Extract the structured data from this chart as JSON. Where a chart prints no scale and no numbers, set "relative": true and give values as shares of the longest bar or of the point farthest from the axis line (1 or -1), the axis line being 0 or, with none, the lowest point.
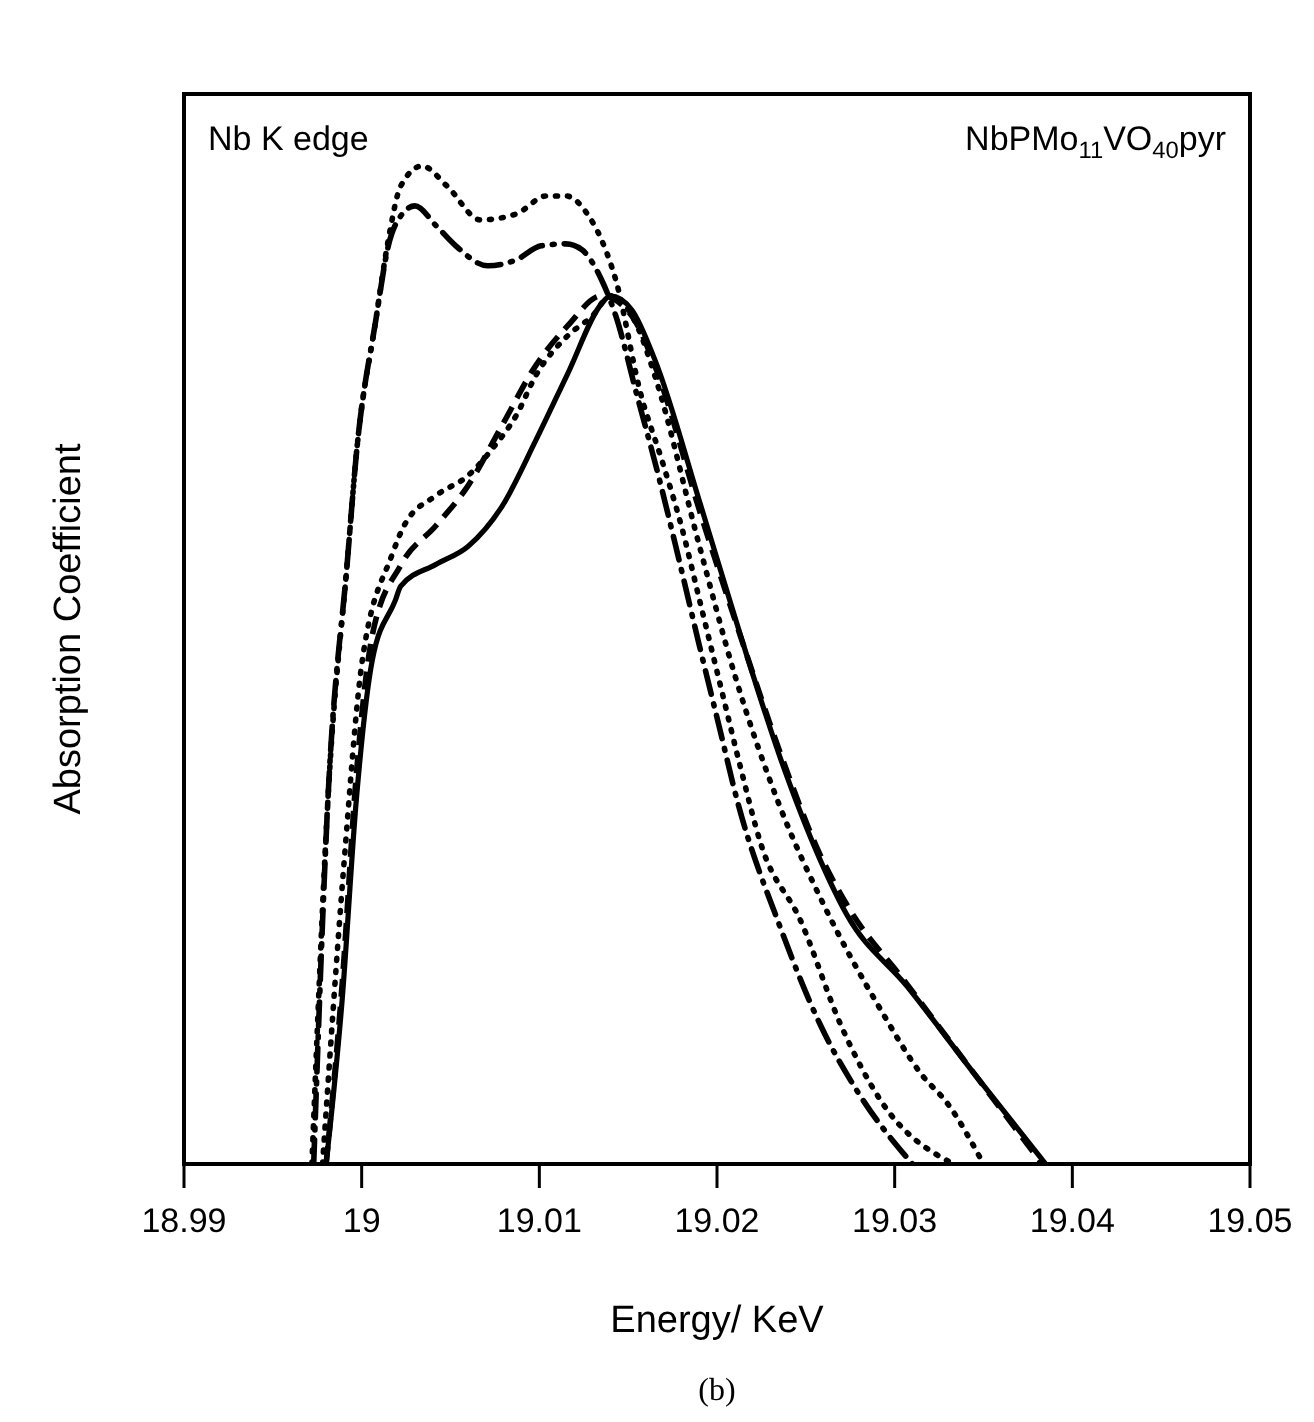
{
  "chart_data": {
    "type": "line",
    "relative": true,
    "xlabel": "Energy/ KeV",
    "ylabel": "Absorption Coefficient",
    "annotations": [
      "Nb K edge",
      "NbPMo$_{11}$VO$_{40}$pyr",
      "(b)"
    ],
    "xlim": [
      18.99,
      19.05
    ],
    "xticks": [
      18.99,
      19,
      19.01,
      19.02,
      19.03,
      19.04,
      19.05
    ],
    "grid": false,
    "marker": "none",
    "series": [
      {
        "color": "#000000",
        "line_style": "solid",
        "x": [
          18.998,
          18.9989,
          18.9997,
          19.0006,
          19.0019,
          19.0022,
          19.0042,
          19.006,
          19.0079,
          19.0098,
          19.0116,
          19.0135,
          19.014,
          19.0152,
          19.0165,
          19.0191,
          19.0213,
          19.0236,
          19.0258,
          19.0273,
          19.0307,
          19.0345,
          19.0385
        ],
        "values": [
          0,
          0.164,
          0.365,
          0.505,
          0.565,
          0.579,
          0.601,
          0.619,
          0.659,
          0.725,
          0.792,
          0.862,
          0.87,
          0.856,
          0.806,
          0.659,
          0.531,
          0.405,
          0.305,
          0.25,
          0.178,
          0.09,
          0
        ]
      },
      {
        "color": "#000000",
        "line_style": "dashed",
        "x": [
          18.998,
          18.9989,
          18.9997,
          19.0006,
          19.0022,
          19.0042,
          19.006,
          19.0079,
          19.0098,
          19.0116,
          19.0135,
          19.0152,
          19.0165,
          19.0191,
          19.0213,
          19.0236,
          19.0258,
          19.0273,
          19.0307,
          19.0345,
          19.0383
        ],
        "values": [
          0,
          0.18,
          0.39,
          0.53,
          0.6,
          0.64,
          0.68,
          0.74,
          0.8,
          0.84,
          0.87,
          0.85,
          0.8,
          0.65,
          0.53,
          0.41,
          0.31,
          0.26,
          0.18,
          0.09,
          0
        ]
      },
      {
        "color": "#000000",
        "line_style": "dotted",
        "x": [
          18.9978,
          18.999,
          19.0,
          19.0017,
          19.0024,
          19.0042,
          19.006,
          19.0075,
          19.0087,
          19.0098,
          19.0116,
          19.013,
          19.014,
          19.0155,
          19.0165,
          19.019,
          19.021,
          19.0235,
          19.026,
          19.0292,
          19.0315,
          19.033,
          19.035
        ],
        "values": [
          0,
          0.3,
          0.5,
          0.61,
          0.64,
          0.67,
          0.69,
          0.72,
          0.75,
          0.79,
          0.83,
          0.85,
          0.87,
          0.84,
          0.79,
          0.62,
          0.49,
          0.36,
          0.26,
          0.155,
          0.09,
          0.06,
          0
        ]
      },
      {
        "color": "#000000",
        "line_style": "dotted",
        "x": [
          18.9972,
          18.9981,
          18.9992,
          18.9997,
          19.0008,
          19.0015,
          19.0022,
          19.0034,
          19.0048,
          19.0067,
          19.0087,
          19.0104,
          19.0115,
          19.0127,
          19.0135,
          19.0143,
          19.0157,
          19.0169,
          19.018,
          19.0191,
          19.0202,
          19.0213,
          19.0225,
          19.0247,
          19.027,
          19.0292,
          19.0333
        ],
        "values": [
          0,
          0.365,
          0.605,
          0.711,
          0.846,
          0.926,
          0.98,
          1,
          0.98,
          0.946,
          0.952,
          0.97,
          0.97,
          0.952,
          0.926,
          0.886,
          0.772,
          0.705,
          0.639,
          0.559,
          0.479,
          0.399,
          0.319,
          0.244,
          0.138,
          0.064,
          0
        ]
      },
      {
        "color": "#000000",
        "line_style": "dashdot",
        "x": [
          18.9973,
          18.9981,
          18.9992,
          18.9997,
          19.0008,
          19.0015,
          19.0022,
          19.003,
          19.0042,
          19.0053,
          19.0071,
          19.0087,
          19.0101,
          19.0115,
          19.0124,
          19.0135,
          19.0143,
          19.0155,
          19.0167,
          19.0178,
          19.019,
          19.0201,
          19.0212,
          19.0235,
          19.0258,
          19.028,
          19.031
        ],
        "values": [
          0,
          0.365,
          0.605,
          0.711,
          0.846,
          0.92,
          0.95,
          0.96,
          0.94,
          0.92,
          0.9,
          0.906,
          0.92,
          0.922,
          0.916,
          0.886,
          0.85,
          0.77,
          0.69,
          0.61,
          0.52,
          0.44,
          0.36,
          0.24,
          0.14,
          0.07,
          0
        ]
      }
    ]
  }
}
